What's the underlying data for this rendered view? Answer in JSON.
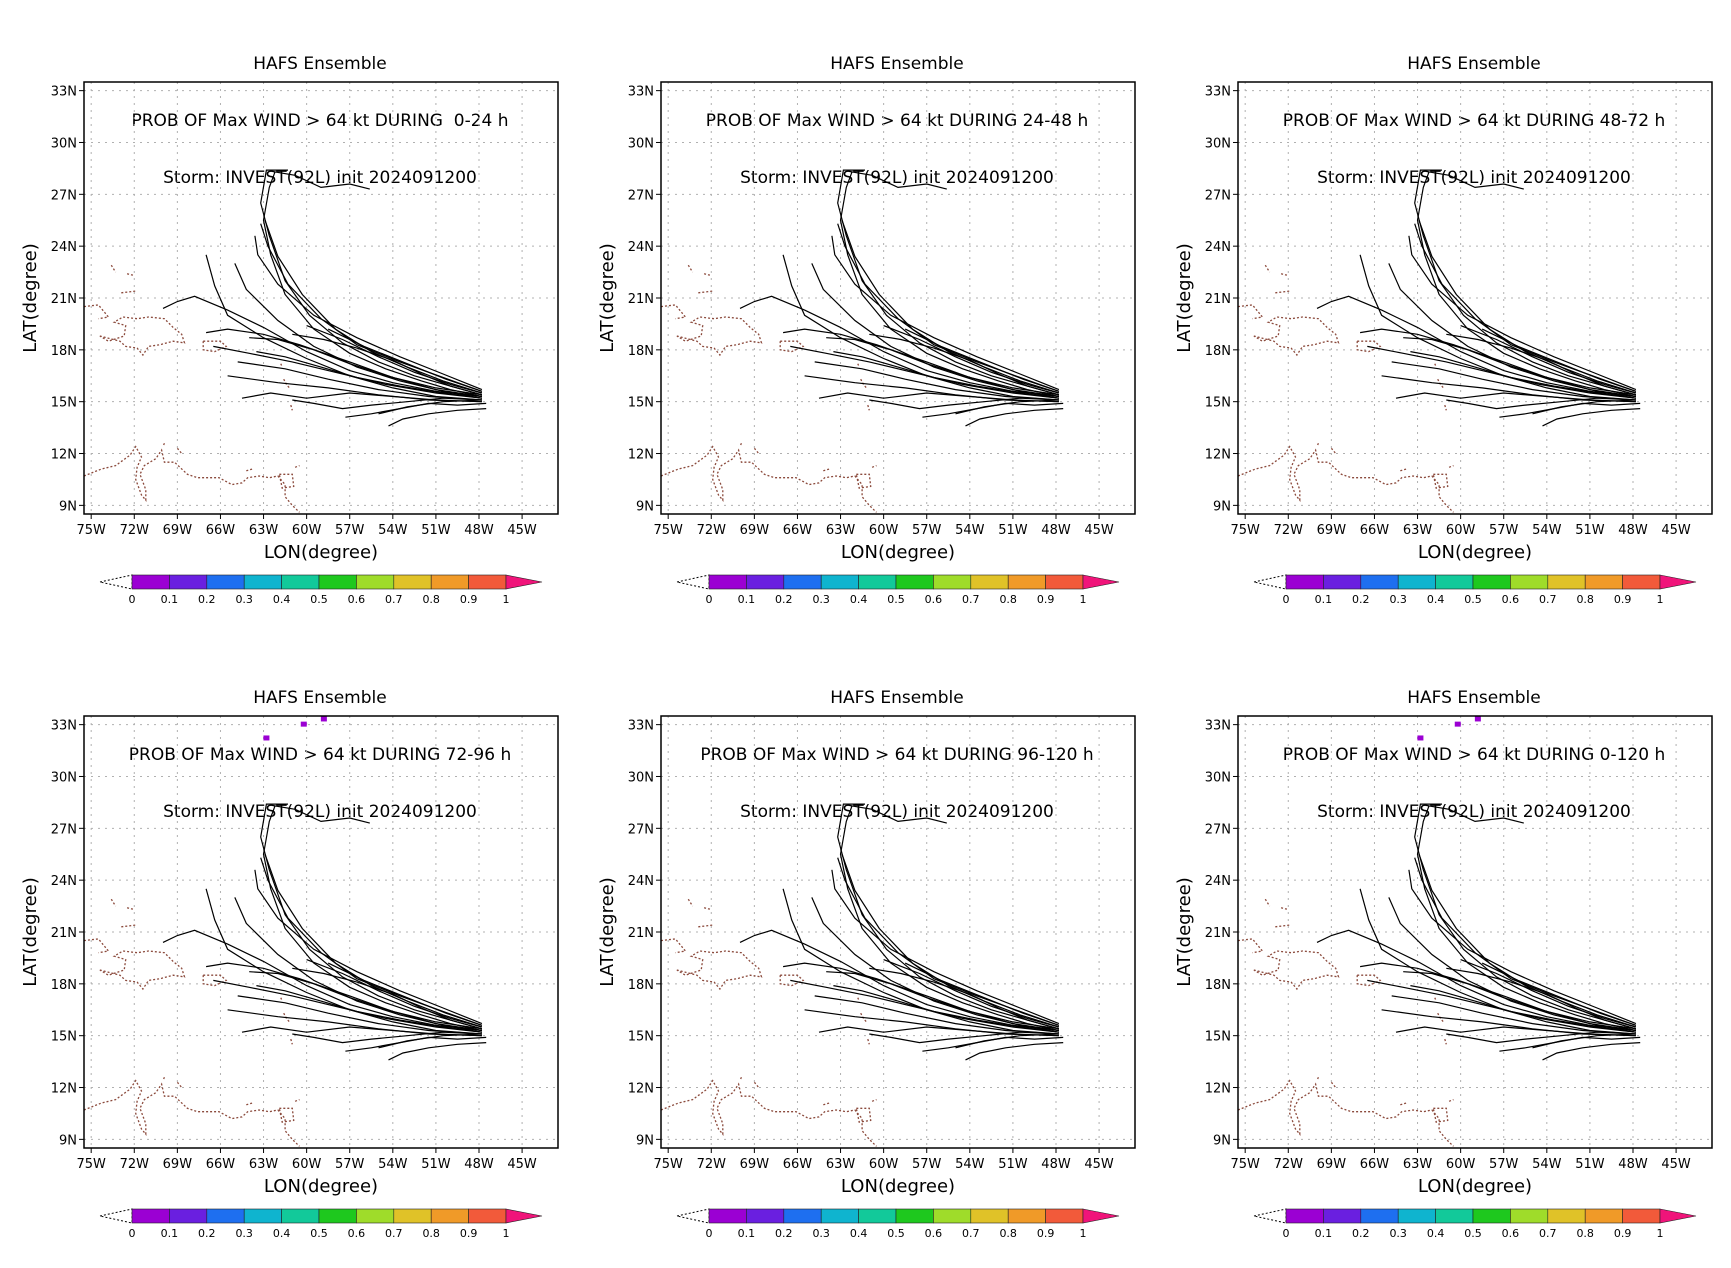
{
  "chart_data": [
    {
      "type": "map",
      "title_lines": [
        "HAFS Ensemble",
        "PROB OF Max WIND > 64 kt DURING  0-24 h",
        "Storm: INVEST(92L) init 2024091200"
      ],
      "xlabel": "LON(degree)",
      "ylabel": "LAT(degree)",
      "x_ticks": [
        "75W",
        "72W",
        "69W",
        "66W",
        "63W",
        "60W",
        "57W",
        "54W",
        "51W",
        "48W",
        "45W"
      ],
      "y_ticks": [
        "33N",
        "30N",
        "27N",
        "24N",
        "21N",
        "18N",
        "15N",
        "12N",
        "9N"
      ],
      "xlim": [
        -75.5,
        -42.5
      ],
      "ylim": [
        8.5,
        33.5
      ],
      "grid": true,
      "prob_marks": [],
      "colorbar": {
        "ticks": [
          "0",
          "0.1",
          "0.2",
          "0.3",
          "0.4",
          "0.5",
          "0.6",
          "0.7",
          "0.8",
          "0.9",
          "1"
        ]
      }
    },
    {
      "type": "map",
      "title_lines": [
        "HAFS Ensemble",
        "PROB OF Max WIND > 64 kt DURING 24-48 h",
        "Storm: INVEST(92L) init 2024091200"
      ],
      "xlabel": "LON(degree)",
      "ylabel": "LAT(degree)",
      "x_ticks": [
        "75W",
        "72W",
        "69W",
        "66W",
        "63W",
        "60W",
        "57W",
        "54W",
        "51W",
        "48W",
        "45W"
      ],
      "y_ticks": [
        "33N",
        "30N",
        "27N",
        "24N",
        "21N",
        "18N",
        "15N",
        "12N",
        "9N"
      ],
      "xlim": [
        -75.5,
        -42.5
      ],
      "ylim": [
        8.5,
        33.5
      ],
      "grid": true,
      "prob_marks": [],
      "colorbar": {
        "ticks": [
          "0",
          "0.1",
          "0.2",
          "0.3",
          "0.4",
          "0.5",
          "0.6",
          "0.7",
          "0.8",
          "0.9",
          "1"
        ]
      }
    },
    {
      "type": "map",
      "title_lines": [
        "HAFS Ensemble",
        "PROB OF Max WIND > 64 kt DURING 48-72 h",
        "Storm: INVEST(92L) init 2024091200"
      ],
      "xlabel": "LON(degree)",
      "ylabel": "LAT(degree)",
      "x_ticks": [
        "75W",
        "72W",
        "69W",
        "66W",
        "63W",
        "60W",
        "57W",
        "54W",
        "51W",
        "48W",
        "45W"
      ],
      "y_ticks": [
        "33N",
        "30N",
        "27N",
        "24N",
        "21N",
        "18N",
        "15N",
        "12N",
        "9N"
      ],
      "xlim": [
        -75.5,
        -42.5
      ],
      "ylim": [
        8.5,
        33.5
      ],
      "grid": true,
      "prob_marks": [],
      "colorbar": {
        "ticks": [
          "0",
          "0.1",
          "0.2",
          "0.3",
          "0.4",
          "0.5",
          "0.6",
          "0.7",
          "0.8",
          "0.9",
          "1"
        ]
      }
    },
    {
      "type": "map",
      "title_lines": [
        "HAFS Ensemble",
        "PROB OF Max WIND > 64 kt DURING 72-96 h",
        "Storm: INVEST(92L) init 2024091200"
      ],
      "xlabel": "LON(degree)",
      "ylabel": "LAT(degree)",
      "x_ticks": [
        "75W",
        "72W",
        "69W",
        "66W",
        "63W",
        "60W",
        "57W",
        "54W",
        "51W",
        "48W",
        "45W"
      ],
      "y_ticks": [
        "33N",
        "30N",
        "27N",
        "24N",
        "21N",
        "18N",
        "15N",
        "12N",
        "9N"
      ],
      "xlim": [
        -75.5,
        -42.5
      ],
      "ylim": [
        8.5,
        33.5
      ],
      "grid": true,
      "prob_marks": [
        {
          "lon": -62.8,
          "lat": 32.2,
          "value": 0.05
        },
        {
          "lon": -60.2,
          "lat": 33.0,
          "value": 0.05
        },
        {
          "lon": -58.8,
          "lat": 33.3,
          "value": 0.05
        }
      ],
      "colorbar": {
        "ticks": [
          "0",
          "0.1",
          "0.2",
          "0.3",
          "0.4",
          "0.5",
          "0.6",
          "0.7",
          "0.8",
          "0.9",
          "1"
        ]
      }
    },
    {
      "type": "map",
      "title_lines": [
        "HAFS Ensemble",
        "PROB OF Max WIND > 64 kt DURING 96-120 h",
        "Storm: INVEST(92L) init 2024091200"
      ],
      "xlabel": "LON(degree)",
      "ylabel": "LAT(degree)",
      "x_ticks": [
        "75W",
        "72W",
        "69W",
        "66W",
        "63W",
        "60W",
        "57W",
        "54W",
        "51W",
        "48W",
        "45W"
      ],
      "y_ticks": [
        "33N",
        "30N",
        "27N",
        "24N",
        "21N",
        "18N",
        "15N",
        "12N",
        "9N"
      ],
      "xlim": [
        -75.5,
        -42.5
      ],
      "ylim": [
        8.5,
        33.5
      ],
      "grid": true,
      "prob_marks": [],
      "colorbar": {
        "ticks": [
          "0",
          "0.1",
          "0.2",
          "0.3",
          "0.4",
          "0.5",
          "0.6",
          "0.7",
          "0.8",
          "0.9",
          "1"
        ]
      }
    },
    {
      "type": "map",
      "title_lines": [
        "HAFS Ensemble",
        "PROB OF Max WIND > 64 kt DURING 0-120 h",
        "Storm: INVEST(92L) init 2024091200"
      ],
      "xlabel": "LON(degree)",
      "ylabel": "LAT(degree)",
      "x_ticks": [
        "75W",
        "72W",
        "69W",
        "66W",
        "63W",
        "60W",
        "57W",
        "54W",
        "51W",
        "48W",
        "45W"
      ],
      "y_ticks": [
        "33N",
        "30N",
        "27N",
        "24N",
        "21N",
        "18N",
        "15N",
        "12N",
        "9N"
      ],
      "xlim": [
        -75.5,
        -42.5
      ],
      "ylim": [
        8.5,
        33.5
      ],
      "grid": true,
      "prob_marks": [
        {
          "lon": -62.8,
          "lat": 32.2,
          "value": 0.05
        },
        {
          "lon": -60.2,
          "lat": 33.0,
          "value": 0.05
        },
        {
          "lon": -58.8,
          "lat": 33.3,
          "value": 0.05
        }
      ],
      "colorbar": {
        "ticks": [
          "0",
          "0.1",
          "0.2",
          "0.3",
          "0.4",
          "0.5",
          "0.6",
          "0.7",
          "0.8",
          "0.9",
          "1"
        ]
      }
    }
  ],
  "colors": {
    "colorbar": [
      "#9b00d3",
      "#6a1fe0",
      "#1e6ff0",
      "#0fb4cf",
      "#12c99a",
      "#1ec81e",
      "#9fdc2a",
      "#e0c228",
      "#f09a28",
      "#f25a3a"
    ],
    "overflow": "#f0147a",
    "prob_low": "#9b00d3",
    "tracks": "#000000",
    "coast": "#8b4a3c",
    "grid": "#b0b0b0"
  },
  "tracks": [
    [
      [
        -47.8,
        15.3
      ],
      [
        -50,
        15.7
      ],
      [
        -52,
        16.2
      ],
      [
        -54.5,
        16.9
      ],
      [
        -57,
        17.8
      ],
      [
        -59.5,
        19.2
      ],
      [
        -61.5,
        21.2
      ],
      [
        -62.5,
        23.5
      ],
      [
        -63,
        25.5
      ],
      [
        -62.6,
        27.4
      ],
      [
        -62.2,
        28.3
      ],
      [
        -60.8,
        28.1
      ],
      [
        -59,
        27.4
      ],
      [
        -57,
        27.6
      ],
      [
        -55.6,
        27.3
      ]
    ],
    [
      [
        -47.8,
        15.4
      ],
      [
        -50,
        15.9
      ],
      [
        -52.5,
        16.5
      ],
      [
        -55,
        17.3
      ],
      [
        -57.5,
        18.4
      ],
      [
        -59.8,
        20
      ],
      [
        -61.5,
        22
      ],
      [
        -62.6,
        24.6
      ],
      [
        -63.2,
        26.5
      ],
      [
        -62.8,
        28.4
      ],
      [
        -61.3,
        28.4
      ]
    ],
    [
      [
        -47.8,
        15.5
      ],
      [
        -50.5,
        16.2
      ],
      [
        -53,
        17
      ],
      [
        -55.5,
        17.9
      ],
      [
        -58,
        19.2
      ],
      [
        -60.3,
        21.2
      ],
      [
        -62,
        23.4
      ],
      [
        -62.9,
        25.5
      ]
    ],
    [
      [
        -47.8,
        15.6
      ],
      [
        -50.5,
        16.4
      ],
      [
        -53.5,
        17.3
      ],
      [
        -56.5,
        18.3
      ],
      [
        -59,
        19.8
      ],
      [
        -61.3,
        21.8
      ],
      [
        -62.7,
        24
      ],
      [
        -63.2,
        25.3
      ]
    ],
    [
      [
        -47.8,
        15.7
      ],
      [
        -50.5,
        16.6
      ],
      [
        -53.5,
        17.6
      ],
      [
        -56.5,
        18.7
      ],
      [
        -59.5,
        20
      ],
      [
        -62,
        21.8
      ],
      [
        -63.4,
        23.5
      ],
      [
        -63.6,
        24.6
      ]
    ],
    [
      [
        -47.8,
        15.2
      ],
      [
        -50.5,
        15.6
      ],
      [
        -53.5,
        16.2
      ],
      [
        -56.5,
        17
      ],
      [
        -59.5,
        18.2
      ],
      [
        -62,
        19.7
      ],
      [
        -64.2,
        21.5
      ],
      [
        -65,
        23
      ]
    ],
    [
      [
        -47.8,
        15.1
      ],
      [
        -51,
        15.3
      ],
      [
        -54,
        15.8
      ],
      [
        -57,
        16.5
      ],
      [
        -60,
        17.5
      ],
      [
        -63,
        18.7
      ],
      [
        -65.5,
        20
      ],
      [
        -66.4,
        21.7
      ],
      [
        -67,
        23.5
      ]
    ],
    [
      [
        -47.8,
        15.3
      ],
      [
        -51,
        15.6
      ],
      [
        -54,
        16.1
      ],
      [
        -57,
        16.8
      ],
      [
        -60,
        17.9
      ],
      [
        -63,
        19.3
      ],
      [
        -65.5,
        20.3
      ],
      [
        -67.8,
        21.1
      ],
      [
        -69,
        20.8
      ],
      [
        -70,
        20.4
      ]
    ],
    [
      [
        -47.8,
        15.4
      ],
      [
        -51,
        15.8
      ],
      [
        -54,
        16.4
      ],
      [
        -57,
        17.3
      ],
      [
        -60.5,
        18.3
      ],
      [
        -63,
        18.9
      ],
      [
        -65.5,
        19.2
      ],
      [
        -67,
        19
      ]
    ],
    [
      [
        -47.8,
        15.2
      ],
      [
        -51,
        15.5
      ],
      [
        -54.5,
        16
      ],
      [
        -58,
        16.7
      ],
      [
        -61,
        17.3
      ],
      [
        -64,
        17.8
      ],
      [
        -66.5,
        18.2
      ]
    ],
    [
      [
        -47.8,
        15.1
      ],
      [
        -51.5,
        15.3
      ],
      [
        -55,
        15.7
      ],
      [
        -58.5,
        16.3
      ],
      [
        -61.5,
        16.9
      ],
      [
        -64.8,
        17.3
      ]
    ],
    [
      [
        -47.8,
        15.0
      ],
      [
        -51.5,
        15.1
      ],
      [
        -55,
        15.4
      ],
      [
        -58.5,
        15.8
      ],
      [
        -62,
        16.1
      ],
      [
        -65.5,
        16.5
      ]
    ],
    [
      [
        -47.8,
        15.3
      ],
      [
        -51,
        15.7
      ],
      [
        -54,
        16.4
      ],
      [
        -57,
        17.2
      ],
      [
        -59.5,
        18
      ],
      [
        -62,
        18.6
      ],
      [
        -64,
        18.7
      ]
    ],
    [
      [
        -47.8,
        15.0
      ],
      [
        -51,
        15.1
      ],
      [
        -54,
        15.3
      ],
      [
        -57,
        15.5
      ],
      [
        -60,
        15.2
      ],
      [
        -62.5,
        15.5
      ],
      [
        -64.5,
        15.2
      ]
    ],
    [
      [
        -47.8,
        15.1
      ],
      [
        -50.5,
        15.2
      ],
      [
        -53,
        15.0
      ],
      [
        -55.5,
        14.8
      ],
      [
        -57.5,
        14.6
      ],
      [
        -59.5,
        14.9
      ],
      [
        -61,
        15.1
      ]
    ],
    [
      [
        -47.5,
        14.9
      ],
      [
        -49.5,
        14.8
      ],
      [
        -51.5,
        14.9
      ],
      [
        -53.5,
        14.6
      ],
      [
        -55.5,
        14.3
      ],
      [
        -57.3,
        14.1
      ]
    ],
    [
      [
        -47.5,
        14.6
      ],
      [
        -49.5,
        14.5
      ],
      [
        -51.5,
        14.3
      ],
      [
        -53.3,
        14.0
      ],
      [
        -54.3,
        13.6
      ]
    ],
    [
      [
        -47.8,
        15.1
      ],
      [
        -50.5,
        15.0
      ],
      [
        -53,
        14.7
      ],
      [
        -55,
        14.3
      ]
    ],
    [
      [
        -47.8,
        15.5
      ],
      [
        -50,
        16.0
      ],
      [
        -52.5,
        16.7
      ],
      [
        -55,
        17.6
      ],
      [
        -57.5,
        18.6
      ],
      [
        -60,
        19.4
      ]
    ],
    [
      [
        -47.8,
        15.6
      ],
      [
        -50.3,
        16.3
      ],
      [
        -53,
        17.2
      ],
      [
        -56,
        18.2
      ],
      [
        -58.5,
        19.2
      ]
    ],
    [
      [
        -47.8,
        15.4
      ],
      [
        -50,
        15.9
      ],
      [
        -52,
        16.6
      ],
      [
        -54,
        17.4
      ],
      [
        -56.5,
        18.1
      ],
      [
        -58.8,
        18.6
      ],
      [
        -61,
        18.9
      ]
    ],
    [
      [
        -47.8,
        15.2
      ],
      [
        -50.5,
        15.5
      ],
      [
        -53.5,
        15.9
      ],
      [
        -56.5,
        16.4
      ],
      [
        -59,
        17.0
      ],
      [
        -61.5,
        17.6
      ],
      [
        -63.5,
        17.9
      ]
    ]
  ],
  "coasts": [
    [
      [
        -75.5,
        20.5
      ],
      [
        -74.5,
        20.6
      ],
      [
        -73.8,
        19.9
      ],
      [
        -74.5,
        19.8
      ]
    ],
    [
      [
        -74.4,
        18.8
      ],
      [
        -73.0,
        18.5
      ],
      [
        -72.6,
        18.2
      ],
      [
        -71.8,
        18.1
      ],
      [
        -71.4,
        17.7
      ],
      [
        -71,
        18.2
      ],
      [
        -70.2,
        18.3
      ],
      [
        -69.3,
        18.5
      ],
      [
        -68.5,
        18.4
      ],
      [
        -68.7,
        18.9
      ],
      [
        -69.3,
        19.3
      ],
      [
        -69.9,
        19.8
      ],
      [
        -71,
        19.9
      ],
      [
        -71.8,
        19.8
      ],
      [
        -72.8,
        19.9
      ],
      [
        -73.4,
        19.6
      ],
      [
        -72.6,
        19.4
      ],
      [
        -72.7,
        18.8
      ],
      [
        -73.8,
        18.5
      ],
      [
        -74.4,
        18.8
      ]
    ],
    [
      [
        -67.2,
        18.5
      ],
      [
        -66,
        18.5
      ],
      [
        -65.6,
        18.2
      ],
      [
        -66.4,
        17.9
      ],
      [
        -67.2,
        18.0
      ],
      [
        -67.2,
        18.5
      ]
    ],
    [
      [
        -73.6,
        22.9
      ],
      [
        -73.3,
        22.5
      ]
    ],
    [
      [
        -72.5,
        22.4
      ],
      [
        -72,
        22.3
      ]
    ],
    [
      [
        -72.9,
        21.3
      ],
      [
        -71.9,
        21.4
      ]
    ],
    [
      [
        -61.8,
        17.2
      ],
      [
        -61.7,
        17.0
      ]
    ],
    [
      [
        -61.6,
        16.3
      ],
      [
        -61.4,
        16.0
      ],
      [
        -61.2,
        15.8
      ]
    ],
    [
      [
        -61.1,
        14.8
      ],
      [
        -61.0,
        14.5
      ]
    ],
    [
      [
        -75.5,
        10.7
      ],
      [
        -74.3,
        11.1
      ],
      [
        -73.3,
        11.3
      ],
      [
        -72.3,
        11.9
      ],
      [
        -71.9,
        12.4
      ],
      [
        -71.5,
        11.8
      ],
      [
        -71.8,
        11.2
      ],
      [
        -71.9,
        10.5
      ],
      [
        -71.5,
        9.6
      ],
      [
        -71.2,
        9.3
      ],
      [
        -71.2,
        9.9
      ],
      [
        -71.6,
        10.8
      ],
      [
        -71.3,
        11.3
      ],
      [
        -70.5,
        11.7
      ],
      [
        -70.1,
        12.2
      ],
      [
        -69.9,
        11.5
      ],
      [
        -69.2,
        11.5
      ],
      [
        -68.3,
        10.8
      ],
      [
        -67.6,
        10.6
      ],
      [
        -66.8,
        10.6
      ],
      [
        -66.1,
        10.6
      ],
      [
        -65.2,
        10.2
      ],
      [
        -64.5,
        10.3
      ],
      [
        -64.1,
        10.6
      ],
      [
        -63.3,
        10.7
      ],
      [
        -62.6,
        10.6
      ],
      [
        -62.0,
        10.7
      ],
      [
        -61.5,
        10.2
      ],
      [
        -61.5,
        9.5
      ],
      [
        -61.0,
        9.0
      ],
      [
        -60.5,
        8.6
      ]
    ],
    [
      [
        -61.9,
        10.8
      ],
      [
        -61.0,
        10.8
      ],
      [
        -60.9,
        10.1
      ],
      [
        -61.7,
        10.0
      ],
      [
        -61.9,
        10.8
      ]
    ],
    [
      [
        -69.9,
        12.6
      ],
      [
        -70.0,
        12.4
      ]
    ],
    [
      [
        -69.0,
        12.3
      ],
      [
        -68.7,
        12.0
      ]
    ],
    [
      [
        -64.2,
        11.0
      ],
      [
        -63.8,
        11.1
      ]
    ],
    [
      [
        -60.8,
        11.2
      ],
      [
        -60.5,
        11.3
      ]
    ]
  ]
}
